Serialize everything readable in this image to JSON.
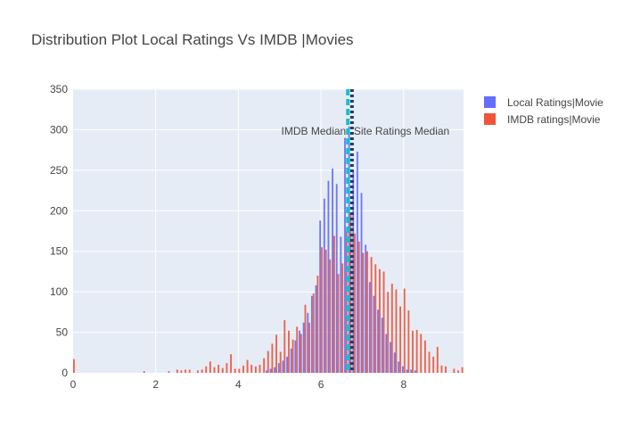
{
  "chart_data": {
    "type": "bar",
    "title": "Distribution Plot Local Ratings Vs IMDB |Movies",
    "xlabel": "",
    "ylabel": "",
    "xlim": [
      0,
      9.45
    ],
    "ylim": [
      0,
      350
    ],
    "x_ticks": [
      "0",
      "2",
      "4",
      "6",
      "8"
    ],
    "x_tick_values": [
      0,
      2,
      4,
      6,
      8
    ],
    "y_ticks": [
      "0",
      "50",
      "100",
      "150",
      "200",
      "250",
      "300",
      "350"
    ],
    "y_tick_values": [
      0,
      50,
      100,
      150,
      200,
      250,
      300,
      350
    ],
    "grid": true,
    "legend_position": "top-right",
    "series": [
      {
        "name": "Local Ratings|Movie",
        "color": "#636efa",
        "x": [
          4.7,
          4.8,
          4.9,
          5.0,
          5.1,
          5.2,
          5.3,
          5.4,
          5.5,
          5.6,
          5.7,
          5.8,
          5.9,
          6.0,
          6.1,
          6.2,
          6.3,
          6.4,
          6.5,
          6.6,
          6.7,
          6.8,
          6.9,
          7.0,
          7.1,
          7.2,
          7.3,
          7.4,
          7.5,
          7.6,
          7.7,
          7.8,
          7.9,
          8.0,
          8.1,
          8.2,
          8.3
        ],
        "values": [
          3,
          5,
          7,
          12,
          15,
          20,
          30,
          40,
          52,
          62,
          74,
          95,
          108,
          188,
          215,
          237,
          252,
          233,
          168,
          290,
          304,
          250,
          273,
          222,
          158,
          112,
          95,
          78,
          68,
          48,
          38,
          25,
          14,
          8,
          4,
          4,
          3
        ]
      },
      {
        "name": "IMDB ratings|Movie",
        "color": "#ef553b",
        "x": [
          0.0,
          1.7,
          2.3,
          2.5,
          2.6,
          2.7,
          2.8,
          3.0,
          3.1,
          3.2,
          3.3,
          3.4,
          3.5,
          3.6,
          3.7,
          3.8,
          3.9,
          4.0,
          4.1,
          4.2,
          4.3,
          4.4,
          4.5,
          4.6,
          4.7,
          4.8,
          4.9,
          5.0,
          5.1,
          5.2,
          5.3,
          5.4,
          5.5,
          5.6,
          5.7,
          5.8,
          5.9,
          6.0,
          6.1,
          6.2,
          6.3,
          6.4,
          6.5,
          6.6,
          6.7,
          6.8,
          6.9,
          7.0,
          7.1,
          7.2,
          7.3,
          7.4,
          7.5,
          7.6,
          7.7,
          7.8,
          7.9,
          8.0,
          8.1,
          8.2,
          8.3,
          8.4,
          8.5,
          8.6,
          8.7,
          8.8,
          8.9,
          9.0,
          9.2,
          9.3,
          9.4
        ],
        "values": [
          17,
          2,
          2,
          4,
          3,
          4,
          4,
          3,
          4,
          8,
          14,
          7,
          10,
          6,
          12,
          23,
          5,
          5,
          9,
          16,
          10,
          8,
          10,
          18,
          27,
          36,
          47,
          26,
          65,
          52,
          41,
          57,
          48,
          84,
          62,
          98,
          120,
          155,
          152,
          140,
          169,
          122,
          135,
          175,
          198,
          172,
          162,
          148,
          150,
          143,
          134,
          128,
          125,
          100,
          110,
          103,
          82,
          104,
          77,
          52,
          53,
          48,
          40,
          26,
          20,
          32,
          9,
          8,
          5,
          3,
          7
        ]
      }
    ],
    "annotations": [
      {
        "text": "IMDB Median",
        "x": 6.65,
        "style": "dash",
        "color": "#17becf"
      },
      {
        "text": "Site Ratings Median",
        "x": 6.75,
        "style": "dot",
        "color": "#283a5e"
      }
    ]
  }
}
